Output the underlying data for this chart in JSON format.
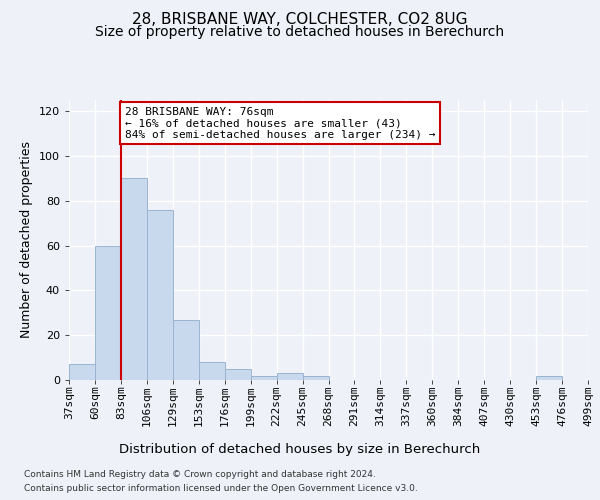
{
  "title1": "28, BRISBANE WAY, COLCHESTER, CO2 8UG",
  "title2": "Size of property relative to detached houses in Berechurch",
  "xlabel": "Distribution of detached houses by size in Berechurch",
  "ylabel": "Number of detached properties",
  "bin_labels": [
    "37sqm",
    "60sqm",
    "83sqm",
    "106sqm",
    "129sqm",
    "153sqm",
    "176sqm",
    "199sqm",
    "222sqm",
    "245sqm",
    "268sqm",
    "291sqm",
    "314sqm",
    "337sqm",
    "360sqm",
    "384sqm",
    "407sqm",
    "430sqm",
    "453sqm",
    "476sqm",
    "499sqm"
  ],
  "bar_values": [
    7,
    60,
    90,
    76,
    27,
    8,
    5,
    2,
    3,
    2,
    0,
    0,
    0,
    0,
    0,
    0,
    0,
    0,
    2,
    0
  ],
  "bar_color": "#c8d9ed",
  "bar_edge_color": "#9ab4d0",
  "red_line_xindex": 2,
  "annotation_line1": "28 BRISBANE WAY: 76sqm",
  "annotation_line2": "← 16% of detached houses are smaller (43)",
  "annotation_line3": "84% of semi-detached houses are larger (234) →",
  "annotation_box_facecolor": "#ffffff",
  "annotation_box_edgecolor": "#cc0000",
  "footer1": "Contains HM Land Registry data © Crown copyright and database right 2024.",
  "footer2": "Contains public sector information licensed under the Open Government Licence v3.0.",
  "ylim": [
    0,
    125
  ],
  "yticks": [
    0,
    20,
    40,
    60,
    80,
    100,
    120
  ],
  "background_color": "#eef1f8",
  "plot_bg_color": "#eef1f8",
  "grid_color": "#ffffff",
  "title1_fontsize": 11,
  "title2_fontsize": 10,
  "ylabel_fontsize": 9,
  "xlabel_fontsize": 9.5,
  "tick_fontsize": 8,
  "footer_fontsize": 6.5
}
